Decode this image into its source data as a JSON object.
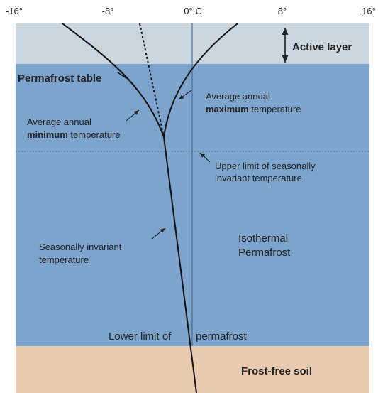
{
  "axis": {
    "ticks": [
      "-16°",
      "-8°",
      "0° C",
      "8°",
      "16°"
    ]
  },
  "zones": {
    "active": "Active layer",
    "table": "Permafrost table",
    "isothermal": [
      "Isothermal",
      "Permafrost"
    ],
    "frost_free": "Frost-free soil"
  },
  "labels": {
    "max_temp": [
      "Average annual",
      "maximum",
      "temperature"
    ],
    "min_temp": [
      "Average annual",
      "minimum",
      "temperature"
    ],
    "upper_limit": [
      "Upper limit of seasonally",
      "invariant temperature"
    ],
    "invariant": [
      "Seasonally invariant",
      "temperature"
    ],
    "lower_limit": [
      "Lower limit of",
      "permafrost"
    ]
  }
}
